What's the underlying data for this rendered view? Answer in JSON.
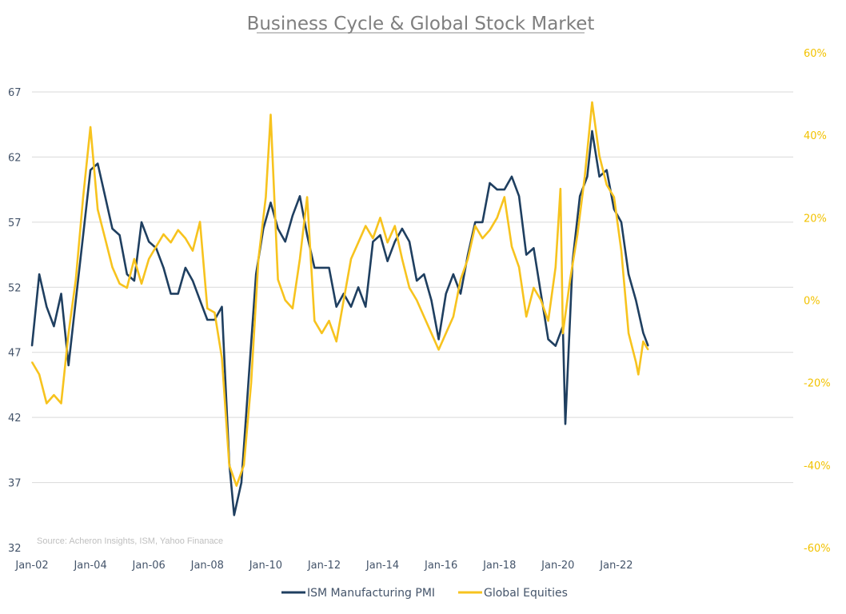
{
  "chart_data": {
    "type": "line",
    "title": "Business Cycle & Global Stock Market",
    "source": "Source: Acheron Insights, ISM, Yahoo Finanace",
    "x_start": "Jan-02",
    "x_tick_labels": [
      "Jan-02",
      "Jan-04",
      "Jan-06",
      "Jan-08",
      "Jan-10",
      "Jan-12",
      "Jan-14",
      "Jan-16",
      "Jan-18",
      "Jan-20",
      "Jan-22"
    ],
    "y_left": {
      "min": 32,
      "max": 67,
      "ticks": [
        32,
        37,
        42,
        47,
        52,
        57,
        62,
        67
      ],
      "tick_labels": [
        "32",
        "37",
        "42",
        "47",
        "52",
        "57",
        "62",
        "67"
      ]
    },
    "y_right": {
      "min": -60,
      "max": 60,
      "ticks": [
        -60,
        -40,
        -20,
        0,
        20,
        40,
        60
      ],
      "tick_labels": [
        "-60%",
        "-40%",
        "-20%",
        "0%",
        "20%",
        "40%",
        "60%"
      ]
    },
    "grid": "horizontal",
    "legend_position": "bottom",
    "series": [
      {
        "name": "ISM Manufacturing PMI",
        "axis": "left",
        "color": "#1f3f60",
        "points": [
          [
            "Jan-02",
            47.5
          ],
          [
            "Apr-02",
            53.0
          ],
          [
            "Jul-02",
            50.5
          ],
          [
            "Oct-02",
            49.0
          ],
          [
            "Jan-03",
            51.5
          ],
          [
            "Apr-03",
            46.0
          ],
          [
            "Jul-03",
            51.0
          ],
          [
            "Oct-03",
            56.0
          ],
          [
            "Jan-04",
            61.0
          ],
          [
            "Apr-04",
            61.5
          ],
          [
            "Jul-04",
            59.0
          ],
          [
            "Oct-04",
            56.5
          ],
          [
            "Jan-05",
            56.0
          ],
          [
            "Apr-05",
            53.0
          ],
          [
            "Jul-05",
            52.5
          ],
          [
            "Oct-05",
            57.0
          ],
          [
            "Jan-06",
            55.5
          ],
          [
            "Apr-06",
            55.0
          ],
          [
            "Jul-06",
            53.5
          ],
          [
            "Oct-06",
            51.5
          ],
          [
            "Jan-07",
            51.5
          ],
          [
            "Apr-07",
            53.5
          ],
          [
            "Jul-07",
            52.5
          ],
          [
            "Oct-07",
            51.0
          ],
          [
            "Jan-08",
            49.5
          ],
          [
            "Apr-08",
            49.5
          ],
          [
            "Jul-08",
            50.5
          ],
          [
            "Oct-08",
            38.5
          ],
          [
            "Dec-08",
            34.5
          ],
          [
            "Mar-09",
            37.0
          ],
          [
            "Jun-09",
            45.0
          ],
          [
            "Sep-09",
            53.0
          ],
          [
            "Dec-09",
            56.5
          ],
          [
            "Mar-10",
            58.5
          ],
          [
            "Jun-10",
            56.5
          ],
          [
            "Sep-10",
            55.5
          ],
          [
            "Dec-10",
            57.5
          ],
          [
            "Mar-11",
            59.0
          ],
          [
            "Jun-11",
            56.0
          ],
          [
            "Sep-11",
            53.5
          ],
          [
            "Dec-11",
            53.5
          ],
          [
            "Mar-12",
            53.5
          ],
          [
            "Jun-12",
            50.5
          ],
          [
            "Sep-12",
            51.5
          ],
          [
            "Dec-12",
            50.5
          ],
          [
            "Mar-13",
            52.0
          ],
          [
            "Jun-13",
            50.5
          ],
          [
            "Sep-13",
            55.5
          ],
          [
            "Dec-13",
            56.0
          ],
          [
            "Mar-14",
            54.0
          ],
          [
            "Jun-14",
            55.5
          ],
          [
            "Sep-14",
            56.5
          ],
          [
            "Dec-14",
            55.5
          ],
          [
            "Mar-15",
            52.5
          ],
          [
            "Jun-15",
            53.0
          ],
          [
            "Sep-15",
            51.0
          ],
          [
            "Dec-15",
            48.0
          ],
          [
            "Mar-16",
            51.5
          ],
          [
            "Jun-16",
            53.0
          ],
          [
            "Sep-16",
            51.5
          ],
          [
            "Dec-16",
            54.5
          ],
          [
            "Mar-17",
            57.0
          ],
          [
            "Jun-17",
            57.0
          ],
          [
            "Sep-17",
            60.0
          ],
          [
            "Dec-17",
            59.5
          ],
          [
            "Mar-18",
            59.5
          ],
          [
            "Jun-18",
            60.5
          ],
          [
            "Sep-18",
            59.0
          ],
          [
            "Dec-18",
            54.5
          ],
          [
            "Mar-19",
            55.0
          ],
          [
            "Jun-19",
            51.5
          ],
          [
            "Sep-19",
            48.0
          ],
          [
            "Dec-19",
            47.5
          ],
          [
            "Mar-20",
            49.0
          ],
          [
            "Apr-20",
            41.5
          ],
          [
            "Jul-20",
            54.0
          ],
          [
            "Oct-20",
            59.0
          ],
          [
            "Jan-21",
            60.5
          ],
          [
            "Mar-21",
            64.0
          ],
          [
            "Jun-21",
            60.5
          ],
          [
            "Sep-21",
            61.0
          ],
          [
            "Dec-21",
            58.0
          ],
          [
            "Mar-22",
            57.0
          ],
          [
            "Jun-22",
            53.0
          ],
          [
            "Sep-22",
            51.0
          ],
          [
            "Dec-22",
            48.5
          ],
          [
            "Feb-23",
            47.5
          ]
        ]
      },
      {
        "name": "Global Equities",
        "axis": "right",
        "color": "#f7c31e",
        "points": [
          [
            "Jan-02",
            -15
          ],
          [
            "Apr-02",
            -18
          ],
          [
            "Jul-02",
            -25
          ],
          [
            "Oct-02",
            -23
          ],
          [
            "Jan-03",
            -25
          ],
          [
            "Apr-03",
            -8
          ],
          [
            "Jul-03",
            5
          ],
          [
            "Oct-03",
            25
          ],
          [
            "Jan-04",
            42
          ],
          [
            "Apr-04",
            22
          ],
          [
            "Jul-04",
            15
          ],
          [
            "Oct-04",
            8
          ],
          [
            "Jan-05",
            4
          ],
          [
            "Apr-05",
            3
          ],
          [
            "Jul-05",
            10
          ],
          [
            "Oct-05",
            4
          ],
          [
            "Jan-06",
            10
          ],
          [
            "Apr-06",
            13
          ],
          [
            "Jul-06",
            16
          ],
          [
            "Oct-06",
            14
          ],
          [
            "Jan-07",
            17
          ],
          [
            "Apr-07",
            15
          ],
          [
            "Jul-07",
            12
          ],
          [
            "Oct-07",
            19
          ],
          [
            "Jan-08",
            -2
          ],
          [
            "Apr-08",
            -3
          ],
          [
            "Jul-08",
            -14
          ],
          [
            "Oct-08",
            -40
          ],
          [
            "Jan-09",
            -45
          ],
          [
            "Apr-09",
            -40
          ],
          [
            "Jul-09",
            -20
          ],
          [
            "Oct-09",
            10
          ],
          [
            "Jan-10",
            25
          ],
          [
            "Mar-10",
            45
          ],
          [
            "Jun-10",
            5
          ],
          [
            "Sep-10",
            0
          ],
          [
            "Dec-10",
            -2
          ],
          [
            "Mar-11",
            10
          ],
          [
            "Jun-11",
            25
          ],
          [
            "Sep-11",
            -5
          ],
          [
            "Dec-11",
            -8
          ],
          [
            "Mar-12",
            -5
          ],
          [
            "Jun-12",
            -10
          ],
          [
            "Sep-12",
            0
          ],
          [
            "Dec-12",
            10
          ],
          [
            "Mar-13",
            14
          ],
          [
            "Jun-13",
            18
          ],
          [
            "Sep-13",
            15
          ],
          [
            "Dec-13",
            20
          ],
          [
            "Mar-14",
            14
          ],
          [
            "Jun-14",
            18
          ],
          [
            "Sep-14",
            10
          ],
          [
            "Dec-14",
            3
          ],
          [
            "Mar-15",
            0
          ],
          [
            "Jun-15",
            -4
          ],
          [
            "Sep-15",
            -8
          ],
          [
            "Dec-15",
            -12
          ],
          [
            "Mar-16",
            -8
          ],
          [
            "Jun-16",
            -4
          ],
          [
            "Sep-16",
            5
          ],
          [
            "Dec-16",
            10
          ],
          [
            "Mar-17",
            18
          ],
          [
            "Jun-17",
            15
          ],
          [
            "Sep-17",
            17
          ],
          [
            "Dec-17",
            20
          ],
          [
            "Mar-18",
            25
          ],
          [
            "Jun-18",
            13
          ],
          [
            "Sep-18",
            8
          ],
          [
            "Dec-18",
            -4
          ],
          [
            "Mar-19",
            3
          ],
          [
            "Jun-19",
            0
          ],
          [
            "Sep-19",
            -5
          ],
          [
            "Dec-19",
            8
          ],
          [
            "Feb-20",
            27
          ],
          [
            "Mar-20",
            -8
          ],
          [
            "Jun-20",
            5
          ],
          [
            "Sep-20",
            16
          ],
          [
            "Dec-20",
            30
          ],
          [
            "Mar-21",
            48
          ],
          [
            "Jun-21",
            35
          ],
          [
            "Sep-21",
            28
          ],
          [
            "Dec-21",
            25
          ],
          [
            "Mar-22",
            12
          ],
          [
            "Jun-22",
            -8
          ],
          [
            "Sep-22",
            -15
          ],
          [
            "Oct-22",
            -18
          ],
          [
            "Dec-22",
            -10
          ],
          [
            "Feb-23",
            -12
          ]
        ]
      }
    ]
  }
}
